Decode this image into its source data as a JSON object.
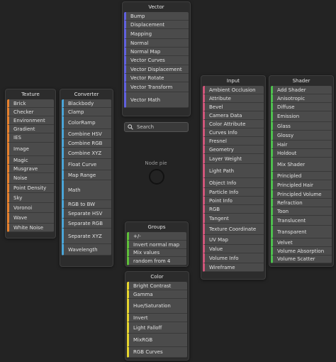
{
  "search": {
    "placeholder": "Search"
  },
  "pie_label": "Node pie",
  "panels": [
    {
      "id": "vector",
      "title": "Vector",
      "accent": "#6161e0",
      "items": [
        "Bump",
        "Displacement",
        "Mapping",
        "Normal",
        "Normal Map",
        "Vector Curves",
        "Vector Displacement",
        "Vector Rotate",
        "Vector Transform",
        "Vector Math"
      ]
    },
    {
      "id": "input",
      "title": "Input",
      "accent": "#d0557a",
      "items": [
        "Ambient Occlusion",
        "Attribute",
        "Bevel",
        "Camera Data",
        "Color Attribute",
        "Curves Info",
        "Fresnel",
        "Geometry",
        "Layer Weight",
        "Light Path",
        "Object Info",
        "Particle Info",
        "Point Info",
        "RGB",
        "Tangent",
        "Texture Coordinate",
        "UV Map",
        "Value",
        "Volume Info",
        "Wireframe"
      ]
    },
    {
      "id": "shader",
      "title": "Shader",
      "accent": "#4ec04e",
      "items": [
        "Add Shader",
        "Anisotropic",
        "Diffuse",
        "Emission",
        "Glass",
        "Glossy",
        "Hair",
        "Holdout",
        "Mix Shader",
        "Principled",
        "Principled Hair",
        "Principled Volume",
        "Refraction",
        "Toon",
        "Translucent",
        "Transparent",
        "Velvet",
        "Volume Absorption",
        "Volume Scatter"
      ]
    },
    {
      "id": "texture",
      "title": "Texture",
      "accent": "#e6812e",
      "items": [
        "Brick",
        "Checker",
        "Environment",
        "Gradient",
        "IES",
        "Image",
        "Magic",
        "Musgrave",
        "Noise",
        "Point Density",
        "Sky",
        "Voronoi",
        "Wave",
        "White Noise"
      ]
    },
    {
      "id": "converter",
      "title": "Converter",
      "accent": "#4aa5d8",
      "items": [
        "Blackbody",
        "Clamp",
        "ColorRamp",
        "Combine HSV",
        "Combine RGB",
        "Combine XYZ",
        "Float Curve",
        "Map Range",
        "Math",
        "RGB to BW",
        "Separate HSV",
        "Separate RGB",
        "Separate XYZ",
        "Wavelength"
      ]
    },
    {
      "id": "groups",
      "title": "Groups",
      "accent": "#5fbf3a",
      "items": [
        "+/-",
        "Invert normal map",
        "Mix values",
        "random from 4"
      ]
    },
    {
      "id": "color",
      "title": "Color",
      "accent": "#e6d52e",
      "items": [
        "Bright Contrast",
        "Gamma",
        "Hue/Saturation",
        "Invert",
        "Light Falloff",
        "MixRGB",
        "RGB Curves"
      ]
    }
  ]
}
